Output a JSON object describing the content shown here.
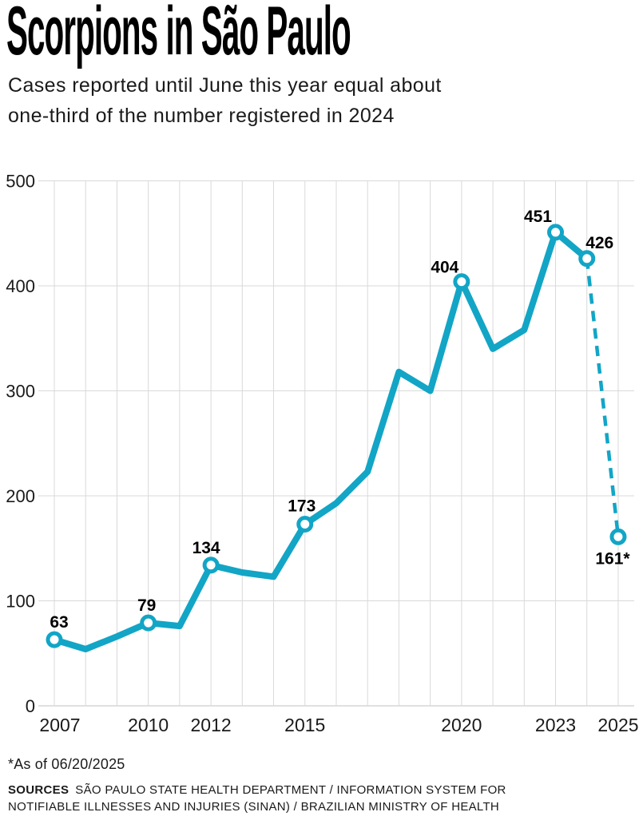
{
  "header": {
    "title": "Scorpions in São Paulo",
    "subtitle_lines": [
      "Cases reported until June this year equal about",
      "one-third of the number registered in 2024"
    ]
  },
  "chart_data": {
    "type": "line",
    "title": "Scorpions in São Paulo",
    "x": [
      2007,
      2008,
      2009,
      2010,
      2011,
      2012,
      2013,
      2014,
      2015,
      2016,
      2017,
      2018,
      2019,
      2020,
      2021,
      2022,
      2023,
      2024,
      2025
    ],
    "values": [
      63,
      54,
      66,
      79,
      76,
      134,
      127,
      123,
      173,
      193,
      223,
      318,
      300,
      404,
      340,
      358,
      451,
      426,
      161
    ],
    "labeled_points": [
      {
        "year": 2007,
        "label": "63"
      },
      {
        "year": 2010,
        "label": "79"
      },
      {
        "year": 2012,
        "label": "134"
      },
      {
        "year": 2015,
        "label": "173"
      },
      {
        "year": 2020,
        "label": "404"
      },
      {
        "year": 2023,
        "label": "451"
      },
      {
        "year": 2024,
        "label": "426"
      },
      {
        "year": 2025,
        "label": "161*"
      }
    ],
    "dashed_segment": {
      "from": 2024,
      "to": 2025
    },
    "x_tick_labels": [
      "2007",
      "2010",
      "2012",
      "2015",
      "2020",
      "2023",
      "2025"
    ],
    "y_ticks": [
      0,
      100,
      200,
      300,
      400,
      500
    ],
    "ylim": [
      0,
      500
    ],
    "grid": true,
    "legend": "none",
    "line_color": "#12a5c6",
    "grid_color": "#d9d9d9",
    "baseline_color": "#c2c2c2",
    "axis_text_color": "#1a1a1a",
    "label_text_color": "#000000"
  },
  "footer": {
    "footnote": "*As of 06/20/2025",
    "sources_label": "SOURCES",
    "sources_line1": "SÃO PAULO STATE HEALTH DEPARTMENT / INFORMATION SYSTEM FOR",
    "sources_line2": "NOTIFIABLE ILLNESSES AND INJURIES (SINAN) / BRAZILIAN MINISTRY OF HEALTH"
  }
}
